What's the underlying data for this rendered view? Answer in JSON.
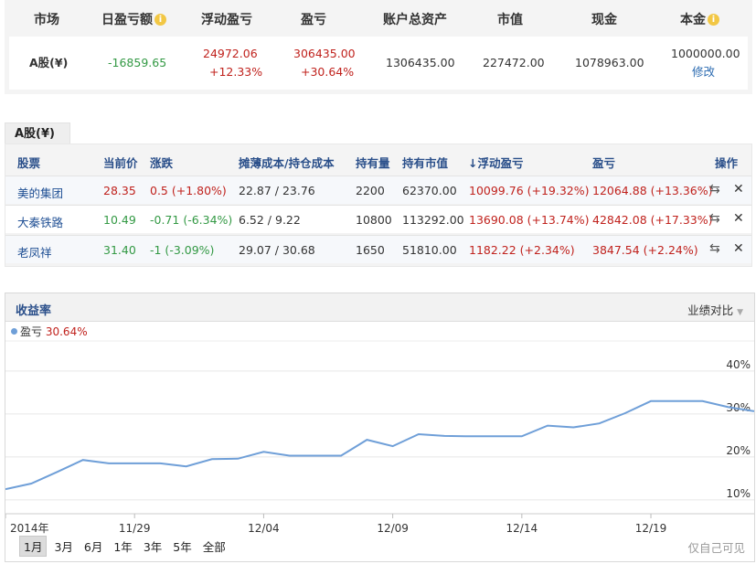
{
  "summary": {
    "headers": {
      "market": "市场",
      "daily_pl": "日盈亏额",
      "float_pl": "浮动盈亏",
      "pl": "盈亏",
      "total_assets": "账户总资产",
      "market_value": "市值",
      "cash": "现金",
      "principal": "本金"
    },
    "row": {
      "market": "A股(¥)",
      "daily_pl": "-16859.65",
      "float_pl_amount": "24972.06",
      "float_pl_pct": "+12.33%",
      "pl_amount": "306435.00",
      "pl_pct": "+30.64%",
      "total_assets": "1306435.00",
      "market_value": "227472.00",
      "cash": "1078963.00",
      "principal": "1000000.00",
      "edit_label": "修改"
    }
  },
  "holdings": {
    "tab_label": "A股(¥)",
    "headers": {
      "stock": "股票",
      "price": "当前价",
      "change": "涨跌",
      "cost": "摊薄成本/持仓成本",
      "qty": "持有量",
      "value": "持有市值",
      "float_pl": "浮动盈亏",
      "pl": "盈亏",
      "ops": "操作"
    },
    "rows": [
      {
        "name": "美的集团",
        "price": "28.35",
        "change": "0.5 (+1.80%)",
        "cost": "22.87 / 23.76",
        "qty": "2200",
        "value": "62370.00",
        "float_pl": "10099.76 (+19.32%)",
        "pl": "12064.88 (+13.36%)"
      },
      {
        "name": "大秦铁路",
        "price": "10.49",
        "change": "-0.71 (-6.34%)",
        "cost": "6.52 / 9.22",
        "qty": "10800",
        "value": "113292.00",
        "float_pl": "13690.08 (+13.74%)",
        "pl": "42842.08 (+17.33%)"
      },
      {
        "name": "老凤祥",
        "price": "31.40",
        "change": "-1 (-3.09%)",
        "cost": "29.07 / 30.68",
        "qty": "1650",
        "value": "51810.00",
        "float_pl": "1182.22 (+2.34%)",
        "pl": "3847.54 (+2.24%)"
      }
    ]
  },
  "chart": {
    "title": "收益率",
    "compare_label": "业绩对比",
    "legend_name": "盈亏",
    "legend_value": "30.64%",
    "ranges": [
      "1月",
      "3月",
      "6月",
      "1年",
      "3年",
      "5年",
      "全部"
    ],
    "active_range": "1月",
    "watermark": "仅自己可见"
  },
  "colors": {
    "up": "#c0221d",
    "down": "#339944",
    "link": "#2a6ab0",
    "header_text": "#2a4f8a",
    "line": "#6f9fd8"
  },
  "chart_data": {
    "type": "line",
    "x_tick_labels": [
      "2014年",
      "11/29",
      "12/04",
      "12/09",
      "12/14",
      "12/19"
    ],
    "y_tick_labels": [
      "10%",
      "20%",
      "30%",
      "40%"
    ],
    "ylim": [
      7,
      47
    ],
    "series": [
      {
        "name": "盈亏",
        "values": [
          12.5,
          13.8,
          16.5,
          19.3,
          18.5,
          18.5,
          18.5,
          17.8,
          19.5,
          19.6,
          21.2,
          20.3,
          20.3,
          20.3,
          24.0,
          22.5,
          25.3,
          24.9,
          24.8,
          24.8,
          24.8,
          27.3,
          26.9,
          27.8,
          30.2,
          33.0,
          33.0,
          33.0,
          31.6,
          30.64
        ]
      }
    ],
    "grid": true
  }
}
